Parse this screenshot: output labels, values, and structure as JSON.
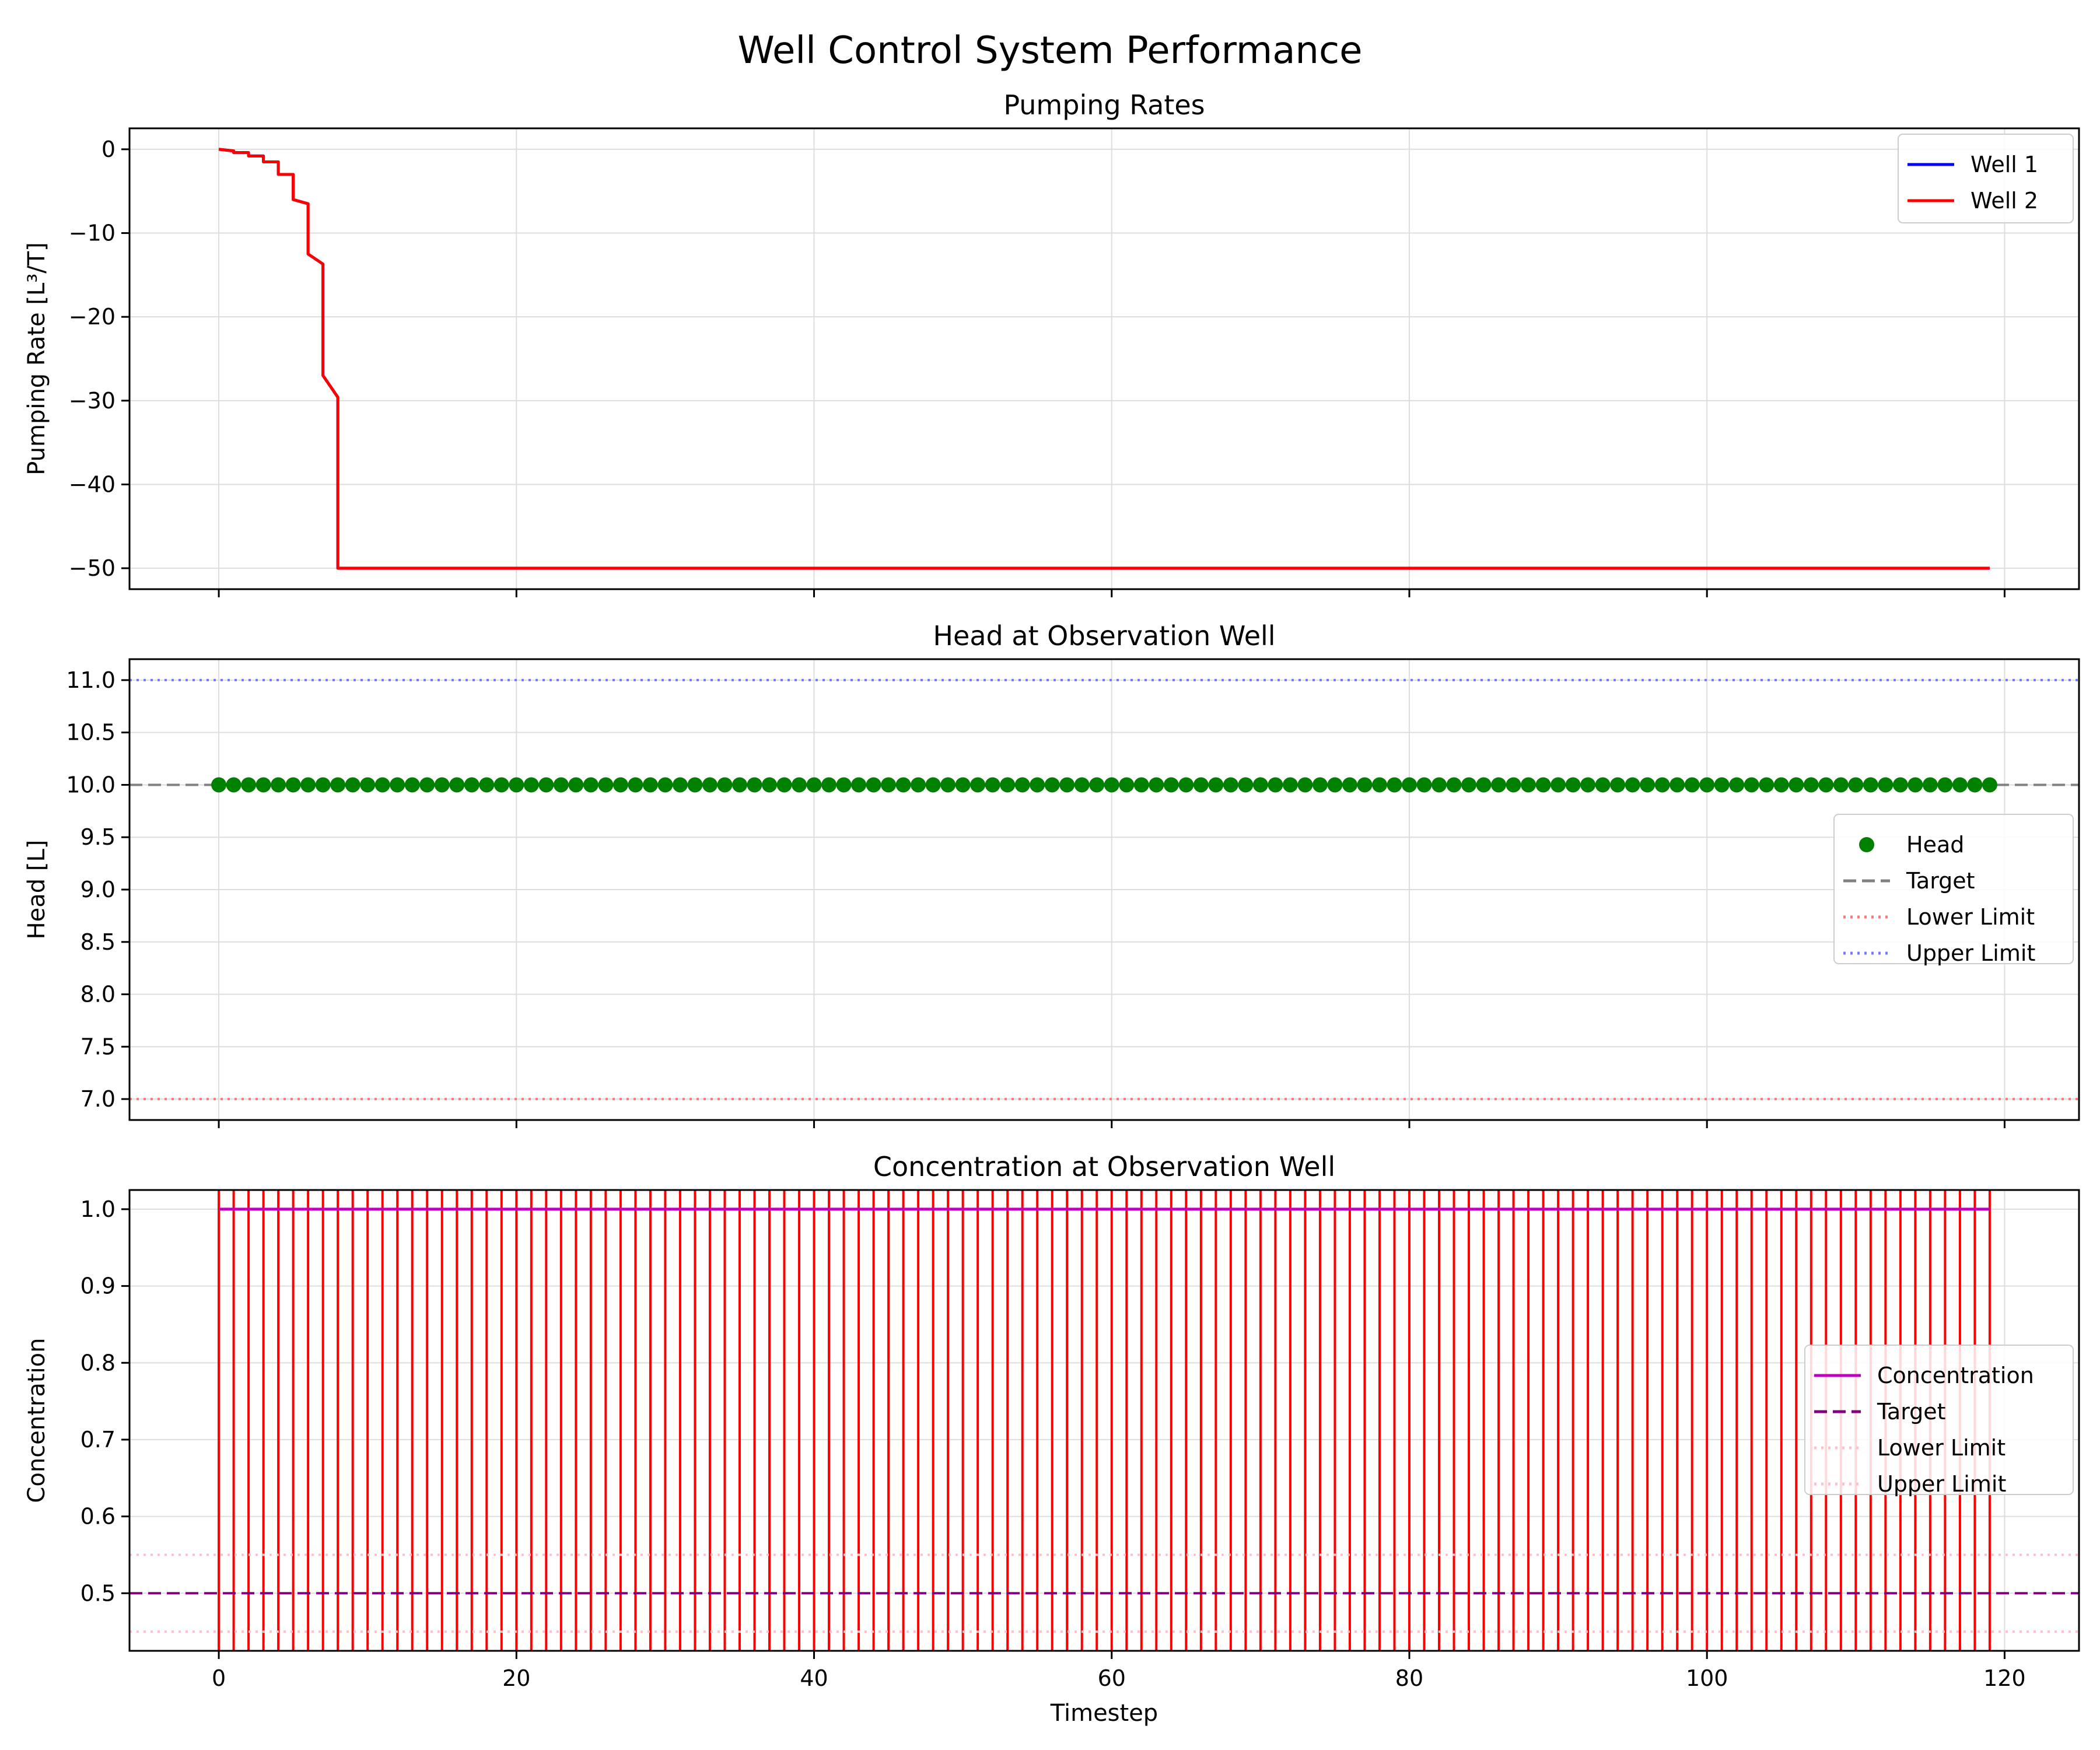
{
  "figure": {
    "suptitle": "Well Control System Performance"
  },
  "chart_data": [
    {
      "type": "line",
      "title": "Pumping Rates",
      "xlabel": "",
      "ylabel": "Pumping Rate [L³/T]",
      "xlim": [
        -6,
        125
      ],
      "ylim": [
        -52.5,
        2.5
      ],
      "x_ticks": [
        0,
        20,
        40,
        60,
        80,
        100,
        120
      ],
      "x_tick_labels": [
        "",
        "",
        "",
        "",
        "",
        "",
        ""
      ],
      "y_ticks": [
        0,
        -10,
        -20,
        -30,
        -40,
        -50
      ],
      "y_tick_labels": [
        "0",
        "−10",
        "−20",
        "−30",
        "−40",
        "−50"
      ],
      "grid": true,
      "legend": {
        "placement": "upper right",
        "entries": [
          "Well 1",
          "Well 2"
        ]
      },
      "series": [
        {
          "name": "Well 1",
          "color": "#0000ff",
          "style": "solid",
          "x": [
            0,
            1,
            1,
            2,
            2,
            3,
            3,
            4,
            4,
            5,
            5,
            6,
            6,
            7,
            7,
            8,
            8,
            119
          ],
          "y": [
            0,
            -0.2,
            -0.4,
            -0.4,
            -0.8,
            -0.8,
            -1.5,
            -1.5,
            -3,
            -3,
            -6,
            -6.5,
            -12.5,
            -13.7,
            -27,
            -29.6,
            -50,
            -50
          ]
        },
        {
          "name": "Well 2",
          "color": "#ff0000",
          "style": "solid",
          "x": [
            0,
            1,
            1,
            2,
            2,
            3,
            3,
            4,
            4,
            5,
            5,
            6,
            6,
            7,
            7,
            8,
            8,
            119
          ],
          "y": [
            0,
            -0.2,
            -0.4,
            -0.4,
            -0.8,
            -0.8,
            -1.5,
            -1.5,
            -3,
            -3,
            -6,
            -6.5,
            -12.5,
            -13.7,
            -27,
            -29.6,
            -50,
            -50
          ]
        }
      ]
    },
    {
      "type": "scatter",
      "title": "Head at Observation Well",
      "xlabel": "",
      "ylabel": "Head [L]",
      "xlim": [
        -6,
        125
      ],
      "ylim": [
        6.8,
        11.2
      ],
      "x_ticks": [
        0,
        20,
        40,
        60,
        80,
        100,
        120
      ],
      "x_tick_labels": [
        "",
        "",
        "",
        "",
        "",
        "",
        ""
      ],
      "y_ticks": [
        7.0,
        7.5,
        8.0,
        8.5,
        9.0,
        9.5,
        10.0,
        10.5,
        11.0
      ],
      "y_tick_labels": [
        "7.0",
        "7.5",
        "8.0",
        "8.5",
        "9.0",
        "9.5",
        "10.0",
        "10.5",
        "11.0"
      ],
      "grid": true,
      "legend": {
        "placement": "center right",
        "entries": [
          "Head",
          "Target",
          "Lower Limit",
          "Upper Limit"
        ]
      },
      "points": {
        "name": "Head",
        "color": "#008000",
        "x_start": 0,
        "x_end": 119,
        "x_step": 1,
        "y": 10.0
      },
      "hlines": [
        {
          "name": "Target",
          "y": 10.0,
          "color": "#808080",
          "style": "dashed"
        },
        {
          "name": "Lower Limit",
          "y": 7.0,
          "color": "#ff7777",
          "style": "dotted"
        },
        {
          "name": "Upper Limit",
          "y": 11.0,
          "color": "#7777ff",
          "style": "dotted"
        }
      ]
    },
    {
      "type": "line",
      "title": "Concentration at Observation Well",
      "xlabel": "Timestep",
      "ylabel": "Concentration",
      "xlim": [
        -6,
        125
      ],
      "ylim": [
        0.425,
        1.025
      ],
      "x_ticks": [
        0,
        20,
        40,
        60,
        80,
        100,
        120
      ],
      "x_tick_labels": [
        "0",
        "20",
        "40",
        "60",
        "80",
        "100",
        "120"
      ],
      "y_ticks": [
        0.5,
        0.6,
        0.7,
        0.8,
        0.9,
        1.0
      ],
      "y_tick_labels": [
        "0.5",
        "0.6",
        "0.7",
        "0.8",
        "0.9",
        "1.0"
      ],
      "grid": true,
      "legend": {
        "placement": "center right",
        "entries": [
          "Concentration",
          "Target",
          "Lower Limit",
          "Upper Limit"
        ]
      },
      "series": [
        {
          "name": "Concentration",
          "color": "#bf00bf",
          "style": "solid",
          "x": [
            0,
            119
          ],
          "y": [
            1.0,
            1.0
          ]
        }
      ],
      "vlines": {
        "color": "#ff0000",
        "x_start": 0,
        "x_end": 119,
        "x_step": 1
      },
      "hlines": [
        {
          "name": "Target",
          "y": 0.5,
          "color": "#800080",
          "style": "dashed"
        },
        {
          "name": "Lower Limit",
          "y": 0.45,
          "color": "#ffc0cb",
          "style": "dotted"
        },
        {
          "name": "Upper Limit",
          "y": 0.55,
          "color": "#ffc0cb",
          "style": "dotted"
        }
      ]
    }
  ]
}
